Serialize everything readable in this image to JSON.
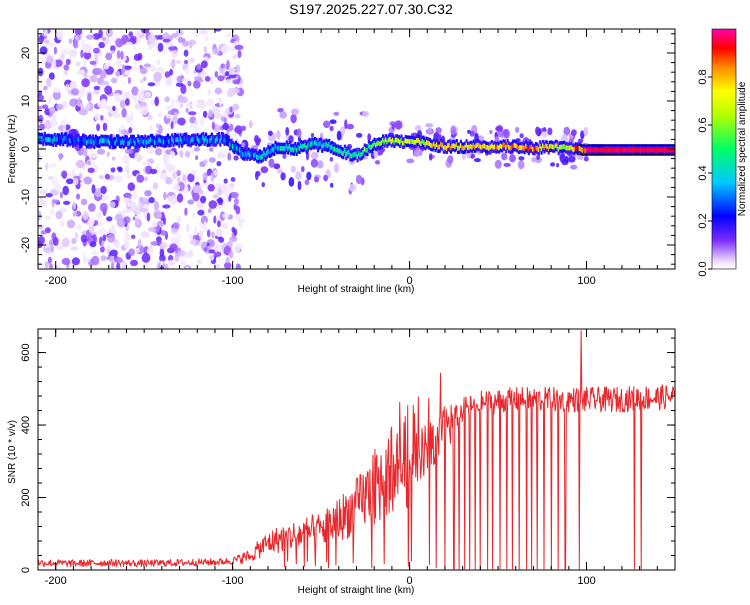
{
  "title": "S197.2025.227.07.30.C32",
  "chart_data": [
    {
      "type": "heatmap",
      "name": "spectrogram",
      "xlabel": "Height of straight line (km)",
      "ylabel": "Frequency (Hz)",
      "xlim": [
        -210,
        150
      ],
      "ylim": [
        -25,
        25
      ],
      "xticks": [
        -200,
        -100,
        0,
        100
      ],
      "yticks": [
        -20,
        -10,
        0,
        10,
        20
      ],
      "ridge": {
        "x": [
          -207,
          -195,
          -180,
          -165,
          -150,
          -120,
          -105,
          -95,
          -85,
          -75,
          -65,
          -55,
          -45,
          -35,
          -30,
          -25,
          -20,
          -15,
          -10,
          -5,
          0,
          5,
          10,
          20,
          30,
          40,
          50,
          60,
          70,
          80,
          90,
          95,
          100,
          110,
          120,
          130,
          140,
          150
        ],
        "freq": [
          2,
          2,
          1.5,
          1.5,
          1.5,
          2,
          2,
          -1,
          -1.5,
          0.5,
          0,
          1,
          0.5,
          -1,
          -1.5,
          0,
          1,
          1.5,
          1.8,
          1.5,
          1.5,
          1.5,
          1,
          0.5,
          0.5,
          0.5,
          0.5,
          0.5,
          0.2,
          0.5,
          0,
          0,
          -0.2,
          -0.2,
          -0.2,
          -0.2,
          -0.2,
          -0.2
        ],
        "amp": [
          0.35,
          0.3,
          0.3,
          0.3,
          0.3,
          0.3,
          0.35,
          0.35,
          0.4,
          0.4,
          0.4,
          0.4,
          0.4,
          0.45,
          0.5,
          0.55,
          0.6,
          0.6,
          0.62,
          0.62,
          0.65,
          0.65,
          0.7,
          0.75,
          0.78,
          0.8,
          0.8,
          0.82,
          0.82,
          0.7,
          0.6,
          0.9,
          0.95,
          0.95,
          0.95,
          0.95,
          0.95,
          0.95
        ]
      },
      "colorbar": {
        "label": "Normalized spectral amplitude",
        "ticks": [
          "0.0",
          "0.2",
          "0.4",
          "0.6",
          "0.8"
        ],
        "range": [
          0,
          1
        ]
      }
    },
    {
      "type": "line",
      "name": "snr",
      "xlabel": "Height of straight line (km)",
      "ylabel": "SNR (10 * v/v)",
      "xlim": [
        -210,
        150
      ],
      "ylim": [
        0,
        665
      ],
      "xticks": [
        -200,
        -100,
        0,
        100
      ],
      "yticks": [
        0,
        200,
        400,
        600
      ],
      "series": [
        {
          "name": "SNR",
          "color": "#e8262b",
          "x": [
            -210,
            -190,
            -170,
            -150,
            -130,
            -110,
            -100,
            -90,
            -80,
            -70,
            -60,
            -50,
            -40,
            -30,
            -20,
            -10,
            0,
            10,
            20,
            30,
            40,
            50,
            60,
            70,
            80,
            90,
            100,
            110,
            120,
            130,
            140,
            150
          ],
          "y": [
            20,
            18,
            20,
            18,
            20,
            22,
            25,
            40,
            75,
            90,
            100,
            110,
            140,
            175,
            230,
            270,
            300,
            335,
            390,
            440,
            460,
            465,
            470,
            470,
            470,
            470,
            470,
            470,
            470,
            475,
            475,
            480
          ]
        }
      ]
    }
  ]
}
